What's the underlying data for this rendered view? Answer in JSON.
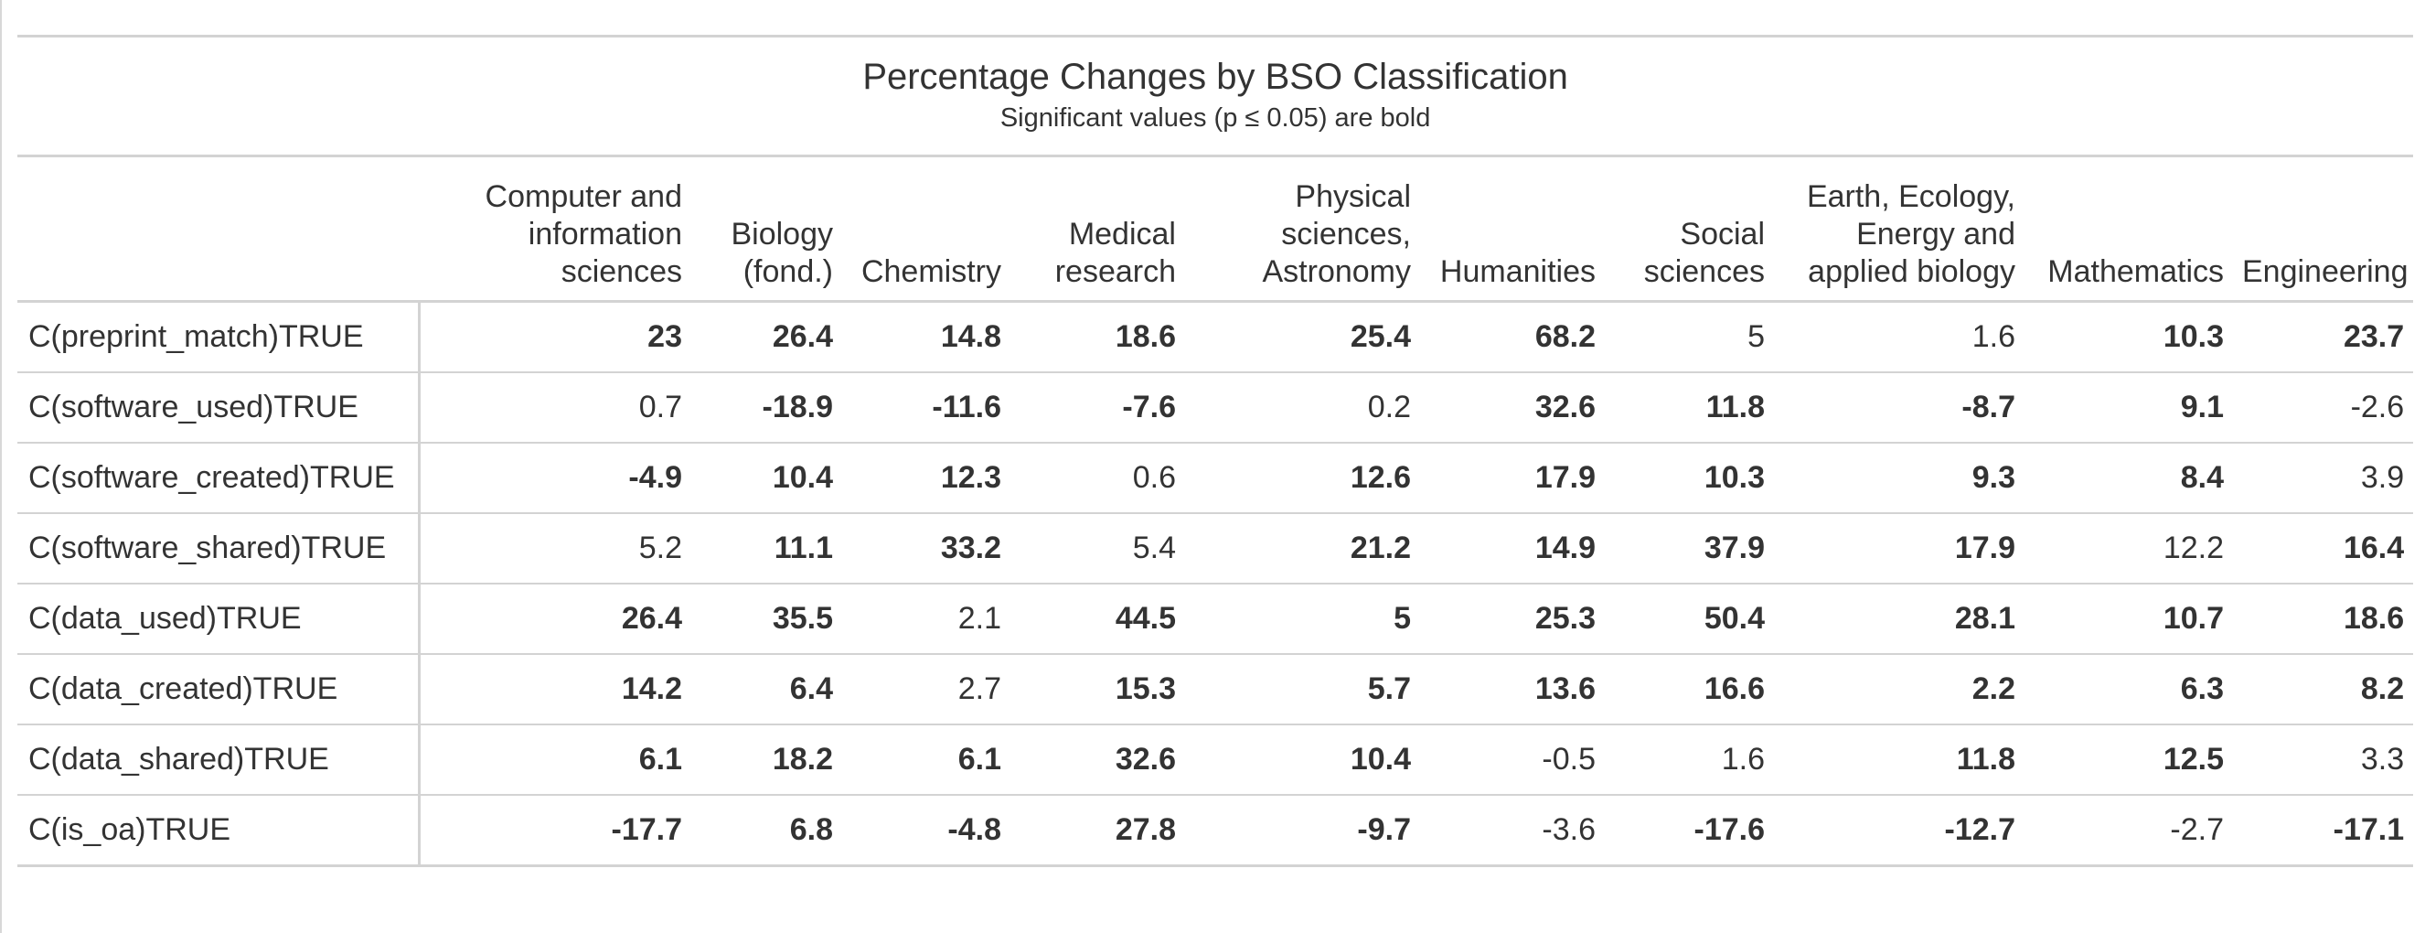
{
  "chart_data": {
    "type": "table",
    "title": "Percentage Changes by BSO Classification",
    "subtitle": "Significant values (p ≤ 0.05) are bold",
    "columns": [
      [
        "Computer and",
        "information",
        "sciences"
      ],
      [
        "Biology",
        "(fond.)"
      ],
      [
        "Chemistry"
      ],
      [
        "Medical",
        "research"
      ],
      [
        "Physical",
        "sciences,",
        "Astronomy"
      ],
      [
        "Humanities"
      ],
      [
        "Social",
        "sciences"
      ],
      [
        "Earth, Ecology,",
        "Energy and",
        "applied biology"
      ],
      [
        "Mathematics"
      ],
      [
        "Engineering"
      ]
    ],
    "rows": [
      {
        "label": "C(preprint_match)TRUE",
        "values": [
          "23",
          "26.4",
          "14.8",
          "18.6",
          "25.4",
          "68.2",
          "5",
          "1.6",
          "10.3",
          "23.7"
        ],
        "significant": [
          true,
          true,
          true,
          true,
          true,
          true,
          false,
          false,
          true,
          true
        ]
      },
      {
        "label": "C(software_used)TRUE",
        "values": [
          "0.7",
          "-18.9",
          "-11.6",
          "-7.6",
          "0.2",
          "32.6",
          "11.8",
          "-8.7",
          "9.1",
          "-2.6"
        ],
        "significant": [
          false,
          true,
          true,
          true,
          false,
          true,
          true,
          true,
          true,
          false
        ]
      },
      {
        "label": "C(software_created)TRUE",
        "values": [
          "-4.9",
          "10.4",
          "12.3",
          "0.6",
          "12.6",
          "17.9",
          "10.3",
          "9.3",
          "8.4",
          "3.9"
        ],
        "significant": [
          true,
          true,
          true,
          false,
          true,
          true,
          true,
          true,
          true,
          false
        ]
      },
      {
        "label": "C(software_shared)TRUE",
        "values": [
          "5.2",
          "11.1",
          "33.2",
          "5.4",
          "21.2",
          "14.9",
          "37.9",
          "17.9",
          "12.2",
          "16.4"
        ],
        "significant": [
          false,
          true,
          true,
          false,
          true,
          true,
          true,
          true,
          false,
          true
        ]
      },
      {
        "label": "C(data_used)TRUE",
        "values": [
          "26.4",
          "35.5",
          "2.1",
          "44.5",
          "5",
          "25.3",
          "50.4",
          "28.1",
          "10.7",
          "18.6"
        ],
        "significant": [
          true,
          true,
          false,
          true,
          true,
          true,
          true,
          true,
          true,
          true
        ]
      },
      {
        "label": "C(data_created)TRUE",
        "values": [
          "14.2",
          "6.4",
          "2.7",
          "15.3",
          "5.7",
          "13.6",
          "16.6",
          "2.2",
          "6.3",
          "8.2"
        ],
        "significant": [
          true,
          true,
          false,
          true,
          true,
          true,
          true,
          true,
          true,
          true
        ]
      },
      {
        "label": "C(data_shared)TRUE",
        "values": [
          "6.1",
          "18.2",
          "6.1",
          "32.6",
          "10.4",
          "-0.5",
          "1.6",
          "11.8",
          "12.5",
          "3.3"
        ],
        "significant": [
          true,
          true,
          true,
          true,
          true,
          false,
          false,
          true,
          true,
          false
        ]
      },
      {
        "label": "C(is_oa)TRUE",
        "values": [
          "-17.7",
          "6.8",
          "-4.8",
          "27.8",
          "-9.7",
          "-3.6",
          "-17.6",
          "-12.7",
          "-2.7",
          "-17.1"
        ],
        "significant": [
          true,
          true,
          true,
          true,
          true,
          false,
          true,
          true,
          false,
          true
        ]
      }
    ]
  },
  "colors": {
    "text": "#333333",
    "rule": "#d3d3d3",
    "background": "#ffffff"
  }
}
